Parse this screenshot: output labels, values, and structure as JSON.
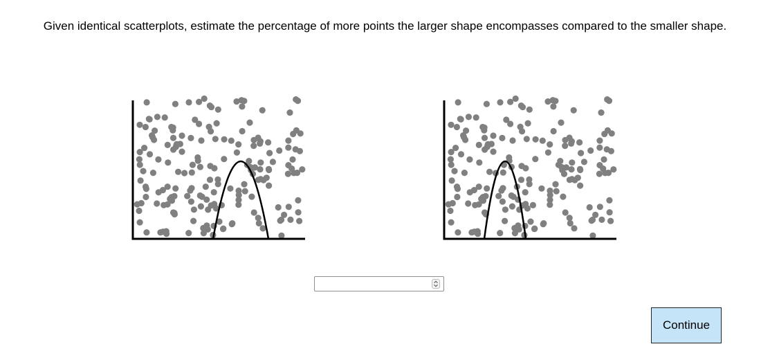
{
  "prompt": "Given identical scatterplots, estimate the percentage of more points the larger shape encompasses compared to the smaller shape.",
  "answer": {
    "value": ""
  },
  "continue_label": "Continue",
  "colors": {
    "point": "#808080",
    "axis": "#000000",
    "button": "#c6e4f7"
  },
  "icons": {
    "stepper": "up-down-chevron-icon"
  }
}
